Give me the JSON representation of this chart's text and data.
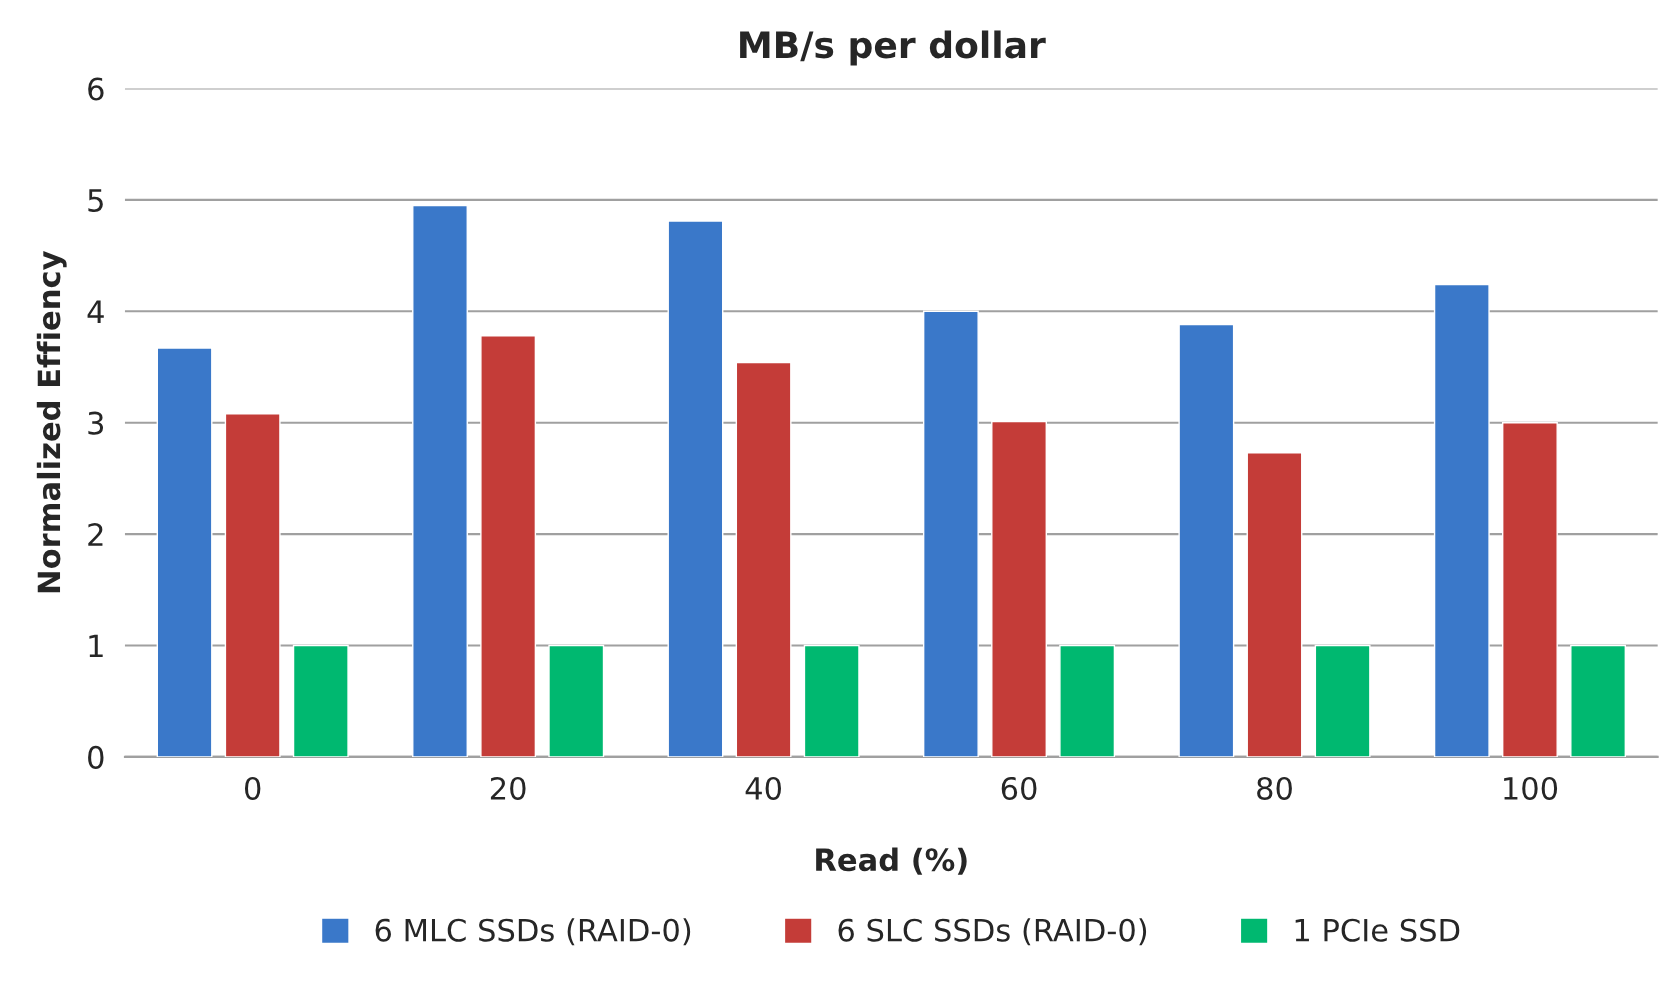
{
  "chart_data": {
    "type": "bar",
    "title": "MB/s per dollar",
    "xlabel": "Read (%)",
    "ylabel": "Normalized Effiency",
    "categories": [
      "0",
      "20",
      "40",
      "60",
      "80",
      "100"
    ],
    "series": [
      {
        "name": "6 MLC SSDs (RAID-0)",
        "color": "#3a78c9",
        "values": [
          3.67,
          4.95,
          4.81,
          4.0,
          3.88,
          4.24
        ]
      },
      {
        "name": "6 SLC SSDs (RAID-0)",
        "color": "#c43c38",
        "values": [
          3.08,
          3.78,
          3.54,
          3.01,
          2.73,
          3.0
        ]
      },
      {
        "name": "1 PCIe SSD",
        "color": "#00b870",
        "values": [
          1.0,
          1.0,
          1.0,
          1.0,
          1.0,
          1.0
        ]
      }
    ],
    "ylim": [
      0,
      6
    ],
    "yticks": [
      0,
      1,
      2,
      3,
      4,
      5,
      6
    ],
    "grid": "y",
    "legend": "bottom"
  }
}
